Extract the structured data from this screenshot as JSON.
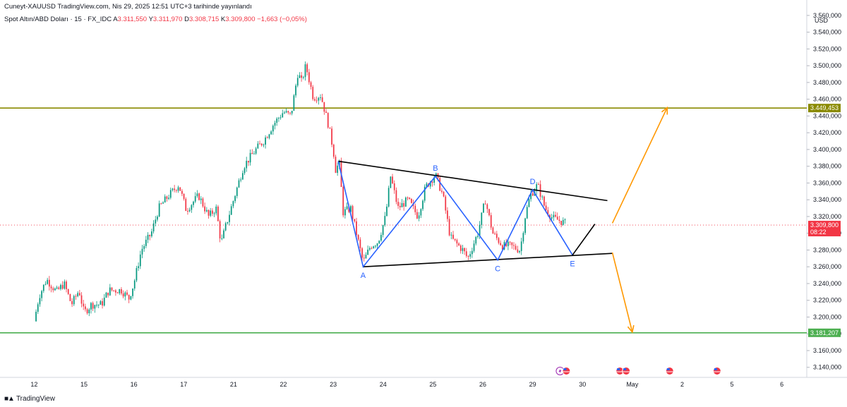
{
  "header": {
    "published": "Cuneyt-XAUUSD TradingView.com, Nis 29, 2025 12:51 UTC+3 tarihinde yayınlandı",
    "symbol": "Spot Altın/ABD Doları · 15 · FX_IDC",
    "o_label": "A",
    "o": "3.311,550",
    "h_label": "Y",
    "h": "3.311,970",
    "l_label": "D",
    "l": "3.308,715",
    "c_label": "K",
    "c": "3.309,800",
    "change": "−1,663 (−0,05%)"
  },
  "footer": {
    "brand": "TradingView",
    "logo": "tradingview-logo-icon"
  },
  "colors": {
    "up": "#089981",
    "down": "#f23645",
    "resistance": "#8a8a00",
    "support": "#4caf50",
    "wave": "#2962ff",
    "projection": "#ff9800",
    "current": "#f23645"
  },
  "chart_data": {
    "type": "candlestick",
    "currency": "USD",
    "y_ticks": [
      "3.140,000",
      "3.160,000",
      "3.180,000",
      "3.200,000",
      "3.220,000",
      "3.240,000",
      "3.260,000",
      "3.280,000",
      "3.300,000",
      "3.320,000",
      "3.340,000",
      "3.360,000",
      "3.380,000",
      "3.400,000",
      "3.420,000",
      "3.440,000",
      "3.460,000",
      "3.480,000",
      "3.500,000",
      "3.520,000",
      "3.540,000",
      "3.560,000"
    ],
    "x_ticks": [
      {
        "label": "12",
        "day": 0
      },
      {
        "label": "15",
        "day": 1
      },
      {
        "label": "16",
        "day": 2
      },
      {
        "label": "17",
        "day": 3
      },
      {
        "label": "21",
        "day": 4
      },
      {
        "label": "22",
        "day": 5
      },
      {
        "label": "23",
        "day": 6
      },
      {
        "label": "24",
        "day": 7
      },
      {
        "label": "25",
        "day": 8
      },
      {
        "label": "26",
        "day": 9
      },
      {
        "label": "29",
        "day": 10
      },
      {
        "label": "30",
        "day": 11
      },
      {
        "label": "May",
        "day": 12
      },
      {
        "label": "2",
        "day": 13
      },
      {
        "label": "5",
        "day": 14
      },
      {
        "label": "6",
        "day": 15
      }
    ],
    "ylim": [
      3128,
      3570
    ],
    "xlim": [
      -0.6,
      15.5
    ],
    "price_path": [
      [
        0.0,
        3195
      ],
      [
        0.1,
        3225
      ],
      [
        0.25,
        3245
      ],
      [
        0.45,
        3230
      ],
      [
        0.6,
        3240
      ],
      [
        0.75,
        3215
      ],
      [
        0.9,
        3232
      ],
      [
        1.0,
        3205
      ],
      [
        1.15,
        3215
      ],
      [
        1.35,
        3215
      ],
      [
        1.5,
        3232
      ],
      [
        1.75,
        3232
      ],
      [
        1.9,
        3222
      ],
      [
        2.0,
        3240
      ],
      [
        2.15,
        3280
      ],
      [
        2.35,
        3300
      ],
      [
        2.5,
        3330
      ],
      [
        2.7,
        3345
      ],
      [
        2.9,
        3358
      ],
      [
        3.05,
        3328
      ],
      [
        3.3,
        3345
      ],
      [
        3.5,
        3320
      ],
      [
        3.65,
        3330
      ],
      [
        3.75,
        3288
      ],
      [
        3.85,
        3310
      ],
      [
        4.0,
        3340
      ],
      [
        4.2,
        3380
      ],
      [
        4.45,
        3400
      ],
      [
        4.6,
        3410
      ],
      [
        4.8,
        3430
      ],
      [
        5.0,
        3445
      ],
      [
        5.15,
        3440
      ],
      [
        5.3,
        3495
      ],
      [
        5.35,
        3478
      ],
      [
        5.45,
        3500
      ],
      [
        5.6,
        3462
      ],
      [
        5.75,
        3465
      ],
      [
        5.9,
        3430
      ],
      [
        6.0,
        3400
      ],
      [
        6.05,
        3375
      ],
      [
        6.12,
        3385
      ],
      [
        6.2,
        3325
      ],
      [
        6.35,
        3330
      ],
      [
        6.6,
        3265
      ],
      [
        6.75,
        3285
      ],
      [
        6.9,
        3290
      ],
      [
        7.05,
        3320
      ],
      [
        7.15,
        3368
      ],
      [
        7.3,
        3330
      ],
      [
        7.5,
        3340
      ],
      [
        7.7,
        3320
      ],
      [
        7.85,
        3355
      ],
      [
        8.05,
        3370
      ],
      [
        8.2,
        3345
      ],
      [
        8.35,
        3295
      ],
      [
        8.6,
        3280
      ],
      [
        8.7,
        3270
      ],
      [
        8.9,
        3300
      ],
      [
        9.05,
        3340
      ],
      [
        9.2,
        3300
      ],
      [
        9.4,
        3285
      ],
      [
        9.55,
        3285
      ],
      [
        9.75,
        3280
      ],
      [
        9.85,
        3320
      ],
      [
        9.95,
        3345
      ],
      [
        10.1,
        3358
      ],
      [
        10.25,
        3330
      ],
      [
        10.4,
        3318
      ],
      [
        10.55,
        3315
      ],
      [
        10.65,
        3312
      ]
    ],
    "resistance_level": {
      "label": "3.449,453",
      "value": 3449.453
    },
    "support_level": {
      "label": "3.181,207",
      "value": 3181.207
    },
    "current_price": {
      "label": "3.309,800",
      "value": 3309.8,
      "countdown": "08:22"
    },
    "wave_points": [
      {
        "label": "A",
        "day": 6.6,
        "value": 3260
      },
      {
        "label": "B",
        "day": 8.05,
        "value": 3368
      },
      {
        "label": "C",
        "day": 9.3,
        "value": 3268
      },
      {
        "label": "D",
        "day": 10.0,
        "value": 3352
      },
      {
        "label": "E",
        "day": 10.8,
        "value": 3274
      }
    ],
    "triangle_upper": [
      [
        6.1,
        3386
      ],
      [
        11.5,
        3339
      ]
    ],
    "triangle_lower": [
      [
        6.6,
        3260
      ],
      [
        11.6,
        3276
      ]
    ],
    "projection_up": [
      [
        11.6,
        3312
      ],
      [
        12.7,
        3450
      ]
    ],
    "projection_down": [
      [
        11.6,
        3277
      ],
      [
        12.0,
        3182
      ]
    ],
    "next_leg": [
      [
        10.8,
        3274
      ],
      [
        11.25,
        3311
      ]
    ],
    "events": [
      {
        "day": 10.55,
        "icons": [
          "lightning-icon",
          "us-flag-icon"
        ]
      },
      {
        "day": 11.75,
        "icons": [
          "us-flag-icon",
          "us-flag-icon"
        ]
      },
      {
        "day": 12.75,
        "icons": [
          "us-flag-icon"
        ]
      },
      {
        "day": 13.7,
        "icons": [
          "us-flag-icon"
        ]
      }
    ]
  }
}
